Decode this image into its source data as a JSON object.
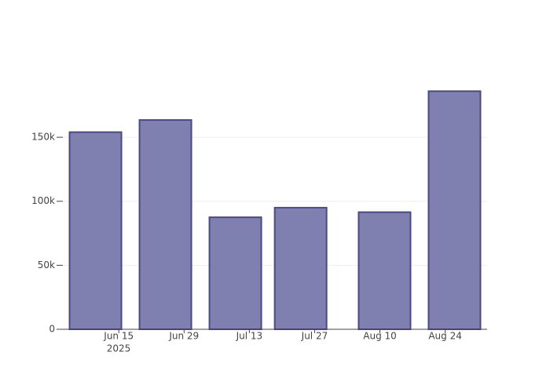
{
  "chart_data": {
    "type": "bar",
    "x": [
      "2025-06-10",
      "2025-06-25",
      "2025-07-10",
      "2025-07-24",
      "2025-08-11",
      "2025-08-26"
    ],
    "values": [
      154000,
      163500,
      87500,
      95000,
      91500,
      186000
    ],
    "color": "#7f7fb0",
    "edge_color": "#4a4a85",
    "xlim": [
      "2025-06-03",
      "2025-09-02"
    ],
    "xticks": [
      {
        "value": "2025-06-15",
        "label": "Jun 15"
      },
      {
        "value": "2025-06-29",
        "label": "Jun 29"
      },
      {
        "value": "2025-07-13",
        "label": "Jul 13"
      },
      {
        "value": "2025-07-27",
        "label": "Jul 27"
      },
      {
        "value": "2025-08-10",
        "label": "Aug 10"
      },
      {
        "value": "2025-08-24",
        "label": "Aug 24"
      }
    ],
    "x_year_label": "2025",
    "ylim": [
      0,
      196000
    ],
    "yticks": [
      0,
      {
        "value": 50000,
        "label": "50k"
      },
      {
        "value": 100000,
        "label": "100k"
      },
      {
        "value": 150000,
        "label": "150k"
      }
    ],
    "grid": true
  }
}
